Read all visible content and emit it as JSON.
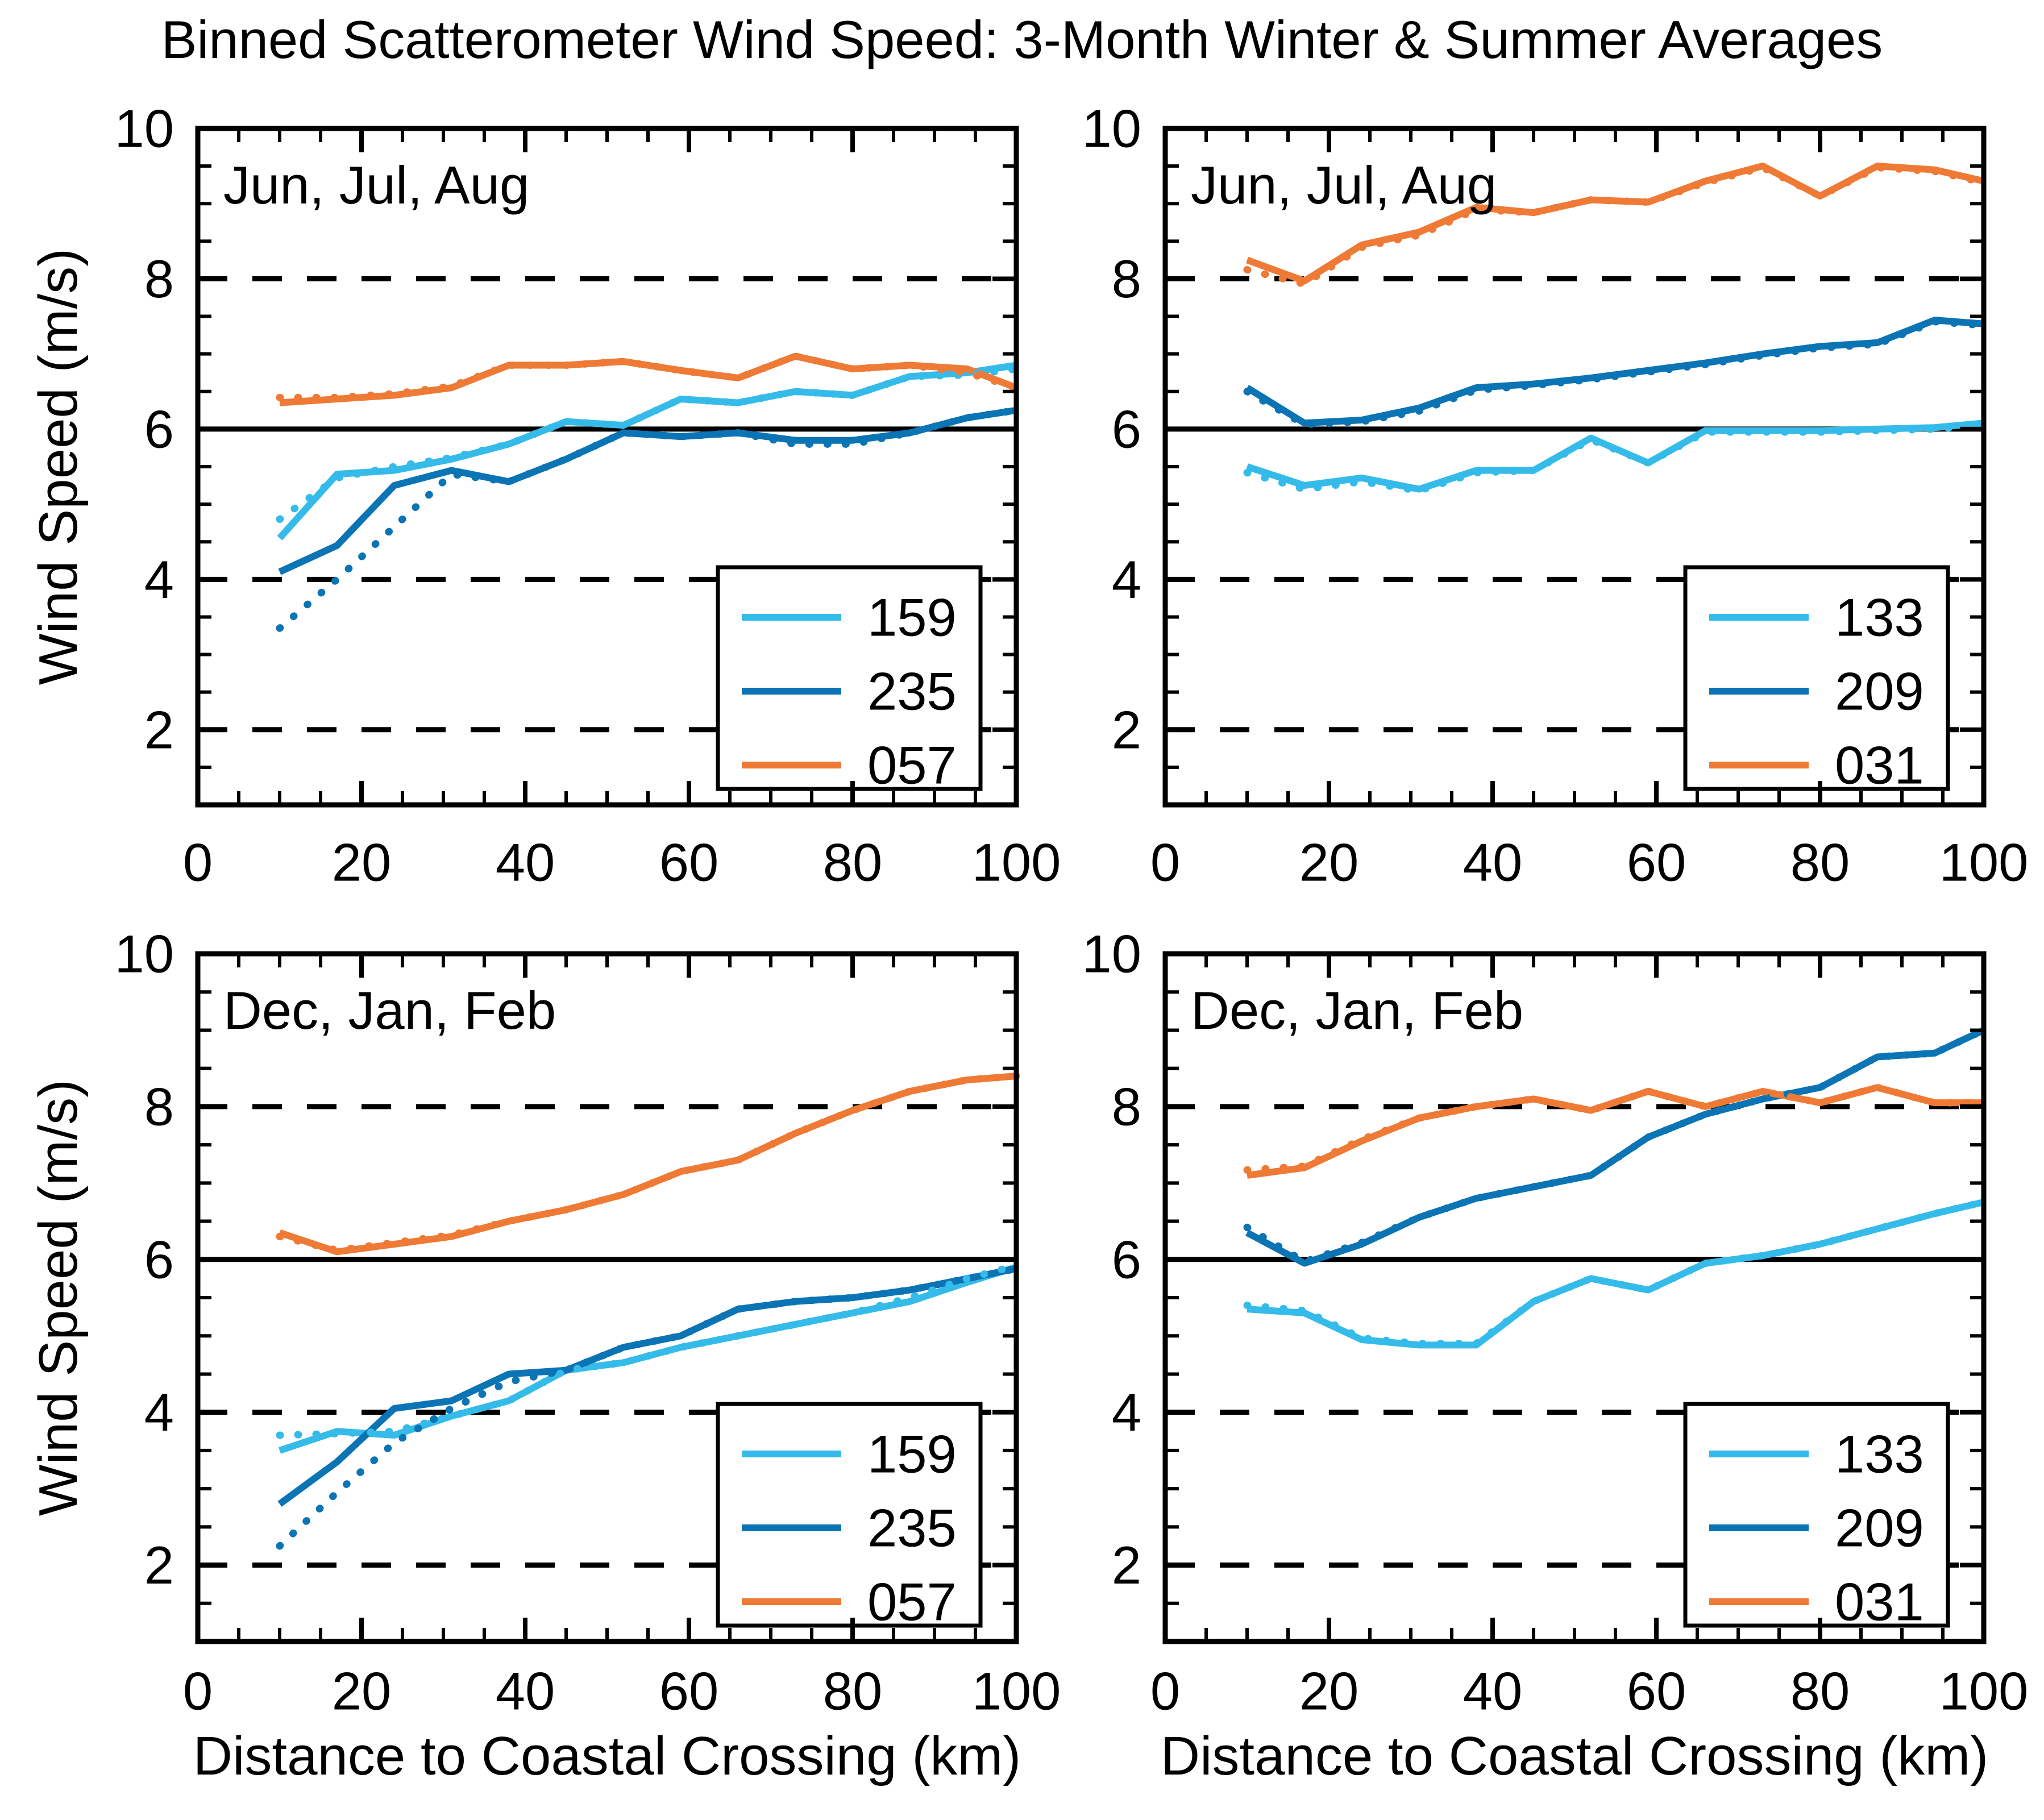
{
  "title": "Binned Scatterometer Wind Speed: 3-Month Winter & Summer Averages",
  "y_axis_label": "Wind Speed (m/s)",
  "x_axis_label": "Distance to Coastal Crossing (km)",
  "colors": {
    "light_blue": "#35BBEA",
    "dark_blue": "#0B74B4",
    "orange": "#EF7A35",
    "axis": "#000000",
    "background": "#ffffff"
  },
  "chart_data": [
    {
      "id": "summer-left",
      "type": "line",
      "season_label": "Jun, Jul, Aug",
      "xlim": [
        0,
        100
      ],
      "ylim": [
        1,
        10
      ],
      "xticks": [
        0,
        20,
        40,
        60,
        80,
        100
      ],
      "yticks": [
        2,
        4,
        6,
        8,
        10
      ],
      "x_minor_step": 5,
      "y_minor_step": 0.5,
      "grid": "ref-lines-only",
      "ref_lines": [
        {
          "y": 2,
          "style": "dashed"
        },
        {
          "y": 4,
          "style": "dashed"
        },
        {
          "y": 6,
          "style": "solid"
        },
        {
          "y": 8,
          "style": "dashed"
        }
      ],
      "x": [
        10,
        17,
        24,
        31,
        38,
        45,
        52,
        59,
        66,
        73,
        80,
        87,
        94,
        100
      ],
      "legend": [
        "159",
        "235",
        "057"
      ],
      "legend_position": "bottom-right",
      "series": [
        {
          "label": "159",
          "color": "light_blue",
          "style": "solid",
          "values": [
            4.55,
            5.4,
            5.45,
            5.6,
            5.8,
            6.1,
            6.05,
            6.4,
            6.35,
            6.5,
            6.45,
            6.7,
            6.75,
            6.85
          ]
        },
        {
          "label": "235",
          "color": "dark_blue",
          "style": "solid",
          "values": [
            4.1,
            4.45,
            5.25,
            5.45,
            5.3,
            5.6,
            5.95,
            5.9,
            5.95,
            5.85,
            5.85,
            5.95,
            6.15,
            6.25
          ]
        },
        {
          "label": "057",
          "color": "orange",
          "style": "solid",
          "values": [
            6.35,
            6.4,
            6.45,
            6.55,
            6.85,
            6.85,
            6.9,
            6.78,
            6.68,
            6.97,
            6.8,
            6.85,
            6.8,
            6.55
          ]
        },
        {
          "label": "159",
          "color": "light_blue",
          "style": "dotted",
          "values": [
            4.8,
            5.35,
            5.5,
            5.62,
            5.8,
            6.1,
            6.05,
            6.4,
            6.35,
            6.5,
            6.45,
            6.7,
            6.72,
            6.8
          ]
        },
        {
          "label": "235",
          "color": "dark_blue",
          "style": "dotted",
          "values": [
            3.35,
            4.0,
            4.7,
            5.4,
            5.3,
            5.6,
            5.95,
            5.9,
            5.95,
            5.8,
            5.8,
            5.95,
            6.15,
            6.25
          ]
        },
        {
          "label": "057",
          "color": "orange",
          "style": "dotted",
          "values": [
            6.42,
            6.42,
            6.47,
            6.57,
            6.85,
            6.85,
            6.9,
            6.78,
            6.68,
            6.97,
            6.8,
            6.85,
            6.75,
            6.55
          ]
        }
      ]
    },
    {
      "id": "summer-right",
      "type": "line",
      "season_label": "Jun, Jul, Aug",
      "xlim": [
        0,
        100
      ],
      "ylim": [
        1,
        10
      ],
      "xticks": [
        0,
        20,
        40,
        60,
        80,
        100
      ],
      "yticks": [
        2,
        4,
        6,
        8,
        10
      ],
      "x_minor_step": 5,
      "y_minor_step": 0.5,
      "grid": "ref-lines-only",
      "ref_lines": [
        {
          "y": 2,
          "style": "dashed"
        },
        {
          "y": 4,
          "style": "dashed"
        },
        {
          "y": 6,
          "style": "solid"
        },
        {
          "y": 8,
          "style": "dashed"
        }
      ],
      "x": [
        10,
        17,
        24,
        31,
        38,
        45,
        52,
        59,
        66,
        73,
        80,
        87,
        94,
        100
      ],
      "legend": [
        "133",
        "209",
        "031"
      ],
      "legend_position": "bottom-right",
      "series": [
        {
          "label": "133",
          "color": "light_blue",
          "style": "solid",
          "values": [
            5.5,
            5.25,
            5.35,
            5.2,
            5.45,
            5.45,
            5.88,
            5.55,
            5.98,
            5.98,
            5.98,
            6.0,
            6.02,
            6.08
          ]
        },
        {
          "label": "209",
          "color": "dark_blue",
          "style": "solid",
          "values": [
            6.55,
            6.08,
            6.12,
            6.28,
            6.55,
            6.6,
            6.68,
            6.78,
            6.88,
            7.0,
            7.1,
            7.15,
            7.45,
            7.4
          ]
        },
        {
          "label": "031",
          "color": "orange",
          "style": "solid",
          "values": [
            8.25,
            7.97,
            8.45,
            8.62,
            8.95,
            8.88,
            9.05,
            9.02,
            9.3,
            9.5,
            9.1,
            9.5,
            9.45,
            9.3
          ]
        },
        {
          "label": "133",
          "color": "light_blue",
          "style": "dotted",
          "values": [
            5.42,
            5.2,
            5.3,
            5.18,
            5.42,
            5.45,
            5.86,
            5.55,
            5.96,
            5.96,
            5.96,
            5.98,
            6.0,
            6.05
          ]
        },
        {
          "label": "209",
          "color": "dark_blue",
          "style": "dotted",
          "values": [
            6.5,
            6.06,
            6.1,
            6.24,
            6.52,
            6.58,
            6.66,
            6.76,
            6.86,
            6.98,
            7.08,
            7.13,
            7.43,
            7.38
          ]
        },
        {
          "label": "031",
          "color": "orange",
          "style": "dotted",
          "values": [
            8.12,
            7.93,
            8.42,
            8.58,
            8.92,
            8.88,
            9.05,
            9.02,
            9.28,
            9.48,
            9.1,
            9.48,
            9.43,
            9.28
          ]
        }
      ]
    },
    {
      "id": "winter-left",
      "type": "line",
      "season_label": "Dec, Jan, Feb",
      "xlim": [
        0,
        100
      ],
      "ylim": [
        1,
        10
      ],
      "xticks": [
        0,
        20,
        40,
        60,
        80,
        100
      ],
      "yticks": [
        2,
        4,
        6,
        8,
        10
      ],
      "x_minor_step": 5,
      "y_minor_step": 0.5,
      "grid": "ref-lines-only",
      "ref_lines": [
        {
          "y": 2,
          "style": "dashed"
        },
        {
          "y": 4,
          "style": "dashed"
        },
        {
          "y": 6,
          "style": "solid"
        },
        {
          "y": 8,
          "style": "dashed"
        }
      ],
      "x": [
        10,
        17,
        24,
        31,
        38,
        45,
        52,
        59,
        66,
        73,
        80,
        87,
        94,
        100
      ],
      "legend": [
        "159",
        "235",
        "057"
      ],
      "legend_position": "bottom-right",
      "series": [
        {
          "label": "159",
          "color": "light_blue",
          "style": "solid",
          "values": [
            3.5,
            3.75,
            3.7,
            3.95,
            4.15,
            4.55,
            4.65,
            4.85,
            5.0,
            5.15,
            5.3,
            5.45,
            5.7,
            5.9
          ]
        },
        {
          "label": "235",
          "color": "dark_blue",
          "style": "solid",
          "values": [
            2.8,
            3.35,
            4.05,
            4.15,
            4.5,
            4.55,
            4.85,
            5.0,
            5.35,
            5.45,
            5.5,
            5.6,
            5.75,
            5.88
          ]
        },
        {
          "label": "057",
          "color": "orange",
          "style": "solid",
          "values": [
            6.35,
            6.1,
            6.2,
            6.3,
            6.5,
            6.65,
            6.85,
            7.15,
            7.3,
            7.65,
            7.95,
            8.2,
            8.35,
            8.4
          ]
        },
        {
          "label": "159",
          "color": "light_blue",
          "style": "dotted",
          "values": [
            3.7,
            3.72,
            3.75,
            3.95,
            4.15,
            4.55,
            4.65,
            4.85,
            5.0,
            5.15,
            5.3,
            5.5,
            5.75,
            5.92
          ]
        },
        {
          "label": "235",
          "color": "dark_blue",
          "style": "dotted",
          "values": [
            2.25,
            2.95,
            3.6,
            4.05,
            4.4,
            4.55,
            4.85,
            5.0,
            5.35,
            5.45,
            5.5,
            5.6,
            5.75,
            5.88
          ]
        },
        {
          "label": "057",
          "color": "orange",
          "style": "dotted",
          "values": [
            6.3,
            6.12,
            6.22,
            6.32,
            6.5,
            6.65,
            6.85,
            7.15,
            7.3,
            7.65,
            7.95,
            8.2,
            8.35,
            8.4
          ]
        }
      ]
    },
    {
      "id": "winter-right",
      "type": "line",
      "season_label": "Dec, Jan, Feb",
      "xlim": [
        0,
        100
      ],
      "ylim": [
        1,
        10
      ],
      "xticks": [
        0,
        20,
        40,
        60,
        80,
        100
      ],
      "yticks": [
        2,
        4,
        6,
        8,
        10
      ],
      "x_minor_step": 5,
      "y_minor_step": 0.5,
      "grid": "ref-lines-only",
      "ref_lines": [
        {
          "y": 2,
          "style": "dashed"
        },
        {
          "y": 4,
          "style": "dashed"
        },
        {
          "y": 6,
          "style": "solid"
        },
        {
          "y": 8,
          "style": "dashed"
        }
      ],
      "x": [
        10,
        17,
        24,
        31,
        38,
        45,
        52,
        59,
        66,
        73,
        80,
        87,
        94,
        100
      ],
      "legend": [
        "133",
        "209",
        "031"
      ],
      "legend_position": "bottom-right",
      "series": [
        {
          "label": "133",
          "color": "light_blue",
          "style": "solid",
          "values": [
            5.35,
            5.3,
            4.95,
            4.88,
            4.88,
            5.45,
            5.75,
            5.6,
            5.95,
            6.05,
            6.2,
            6.4,
            6.6,
            6.75
          ]
        },
        {
          "label": "209",
          "color": "dark_blue",
          "style": "solid",
          "values": [
            6.35,
            5.95,
            6.2,
            6.55,
            6.8,
            6.95,
            7.1,
            7.6,
            7.9,
            8.1,
            8.25,
            8.65,
            8.7,
            9.0
          ]
        },
        {
          "label": "031",
          "color": "orange",
          "style": "solid",
          "values": [
            7.1,
            7.2,
            7.55,
            7.85,
            8.0,
            8.1,
            7.95,
            8.2,
            8.0,
            8.2,
            8.05,
            8.25,
            8.05,
            8.05
          ]
        },
        {
          "label": "133",
          "color": "light_blue",
          "style": "dotted",
          "values": [
            5.4,
            5.33,
            4.97,
            4.9,
            4.9,
            5.45,
            5.75,
            5.6,
            5.95,
            6.05,
            6.2,
            6.4,
            6.6,
            6.75
          ]
        },
        {
          "label": "209",
          "color": "dark_blue",
          "style": "dotted",
          "values": [
            6.42,
            5.97,
            6.22,
            6.55,
            6.8,
            6.95,
            7.1,
            7.6,
            7.9,
            8.1,
            8.25,
            8.65,
            8.7,
            9.0
          ]
        },
        {
          "label": "031",
          "color": "orange",
          "style": "dotted",
          "values": [
            7.17,
            7.22,
            7.57,
            7.85,
            8.0,
            8.1,
            7.95,
            8.2,
            8.0,
            8.2,
            8.05,
            8.25,
            8.05,
            8.05
          ]
        }
      ]
    }
  ]
}
